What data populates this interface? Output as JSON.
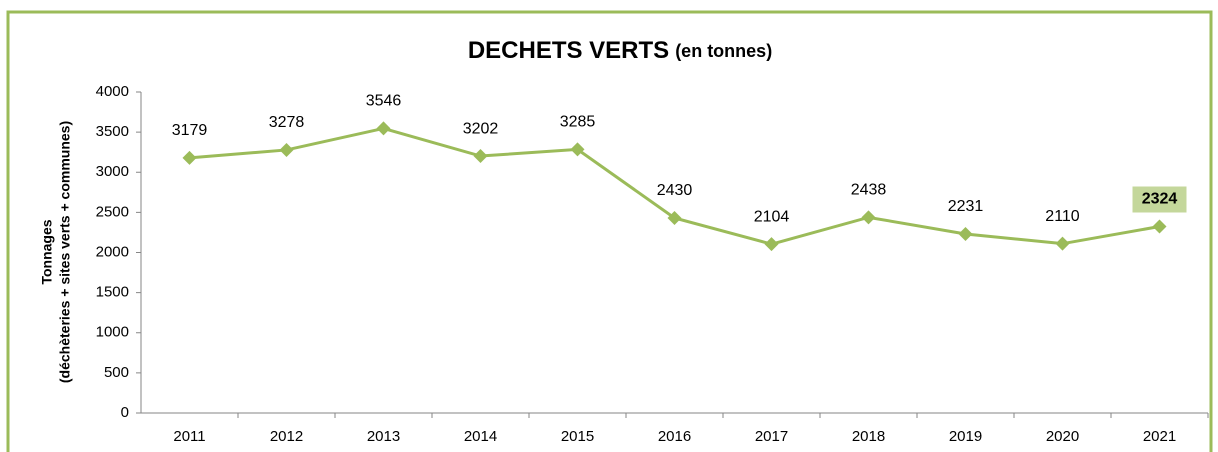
{
  "chart_data": {
    "type": "line",
    "title": "DECHETS VERTS",
    "subtitle": "(en tonnes)",
    "y_label": [
      "Tonnages",
      "(déchèteries + sites verts + communes)"
    ],
    "categories": [
      "2011",
      "2012",
      "2013",
      "2014",
      "2015",
      "2016",
      "2017",
      "2018",
      "2019",
      "2020",
      "2021"
    ],
    "series": [
      {
        "name": "Déchets verts",
        "color": "#9bbb59",
        "values": [
          3179,
          3278,
          3546,
          3202,
          3285,
          2430,
          2104,
          2438,
          2231,
          2110,
          2324
        ]
      }
    ],
    "highlighted": [
      10
    ],
    "highlight_color": "#c4d79b",
    "ylim": [
      0,
      4000
    ],
    "yticks": [
      0,
      500,
      1000,
      1500,
      2000,
      2500,
      3000,
      3500,
      4000
    ],
    "grid": false,
    "legend": false
  }
}
